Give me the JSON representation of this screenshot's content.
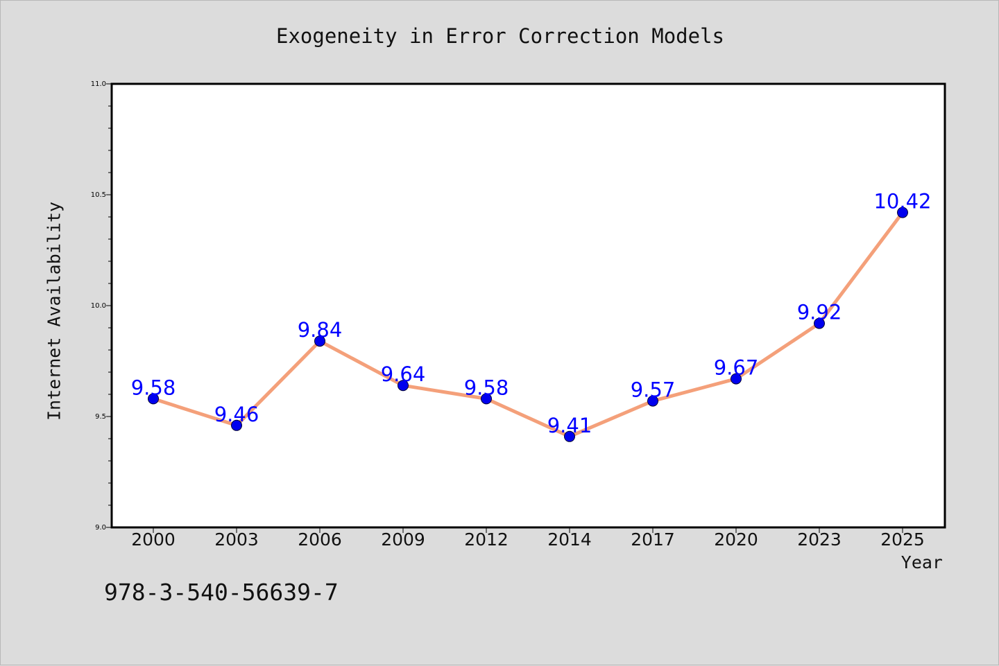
{
  "colors": {
    "background": "#dcdcdc",
    "plot_area": "#ffffff",
    "line": "#f4a07a",
    "marker": "#0000ee",
    "data_label": "#0000ff"
  },
  "footer": {
    "isbn": "978-3-540-56639-7"
  },
  "chart_data": {
    "type": "line",
    "title": "Exogeneity in Error Correction Models",
    "xlabel": "Year",
    "ylabel": "Internet Availability",
    "categories": [
      "2000",
      "2003",
      "2006",
      "2009",
      "2012",
      "2014",
      "2017",
      "2020",
      "2023",
      "2025"
    ],
    "series": [
      {
        "values": [
          9.58,
          9.46,
          9.84,
          9.64,
          9.58,
          9.41,
          9.57,
          9.67,
          9.92,
          10.42
        ]
      }
    ],
    "data_labels": [
      "9.58",
      "9.46",
      "9.84",
      "9.64",
      "9.58",
      "9.41",
      "9.57",
      "9.67",
      "9.92",
      "10.42"
    ],
    "ylim": [
      9.0,
      11.0
    ],
    "yticks": [
      "9.0",
      "9.5",
      "10.0",
      "10.5",
      "11.0"
    ],
    "grid": false,
    "legend": "none"
  }
}
